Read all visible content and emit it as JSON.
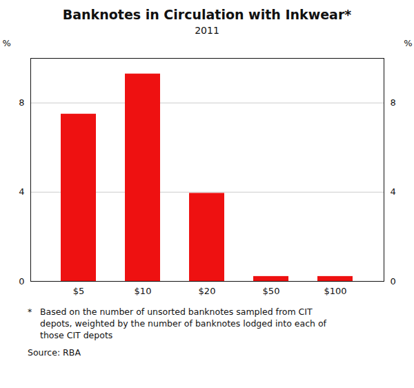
{
  "chart_data": {
    "type": "bar",
    "title": "Banknotes in Circulation with Inkwear*",
    "subtitle": "2011",
    "categories": [
      "$5",
      "$10",
      "$20",
      "$50",
      "$100"
    ],
    "values": [
      7.5,
      9.3,
      3.95,
      0.22,
      0.22
    ],
    "color": "#ee1111",
    "ylim": [
      0,
      10
    ],
    "yticks": [
      0,
      4,
      8
    ],
    "grid": true,
    "ylabel": "%",
    "y2label": "%",
    "footnote_marker": "*",
    "footnote": [
      "Based on the number of unsorted banknotes sampled from CIT",
      "depots, weighted by the number of banknotes lodged into each of",
      "those CIT depots"
    ],
    "source": "Source: RBA"
  }
}
